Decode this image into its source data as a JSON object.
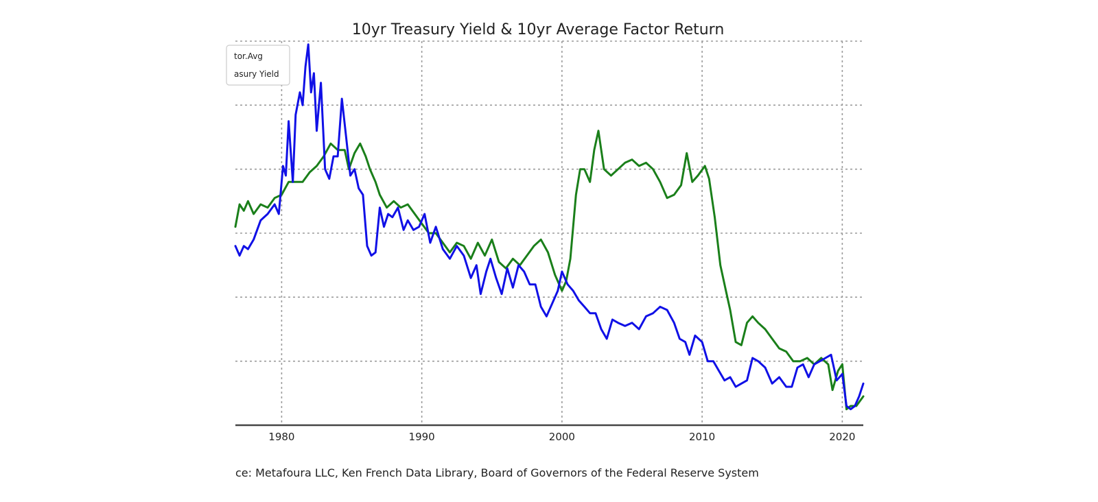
{
  "chart_data": {
    "type": "line",
    "title": "10yr Treasury Yield & 10yr Average Factor Return",
    "xlabel": "",
    "ylabel": "",
    "source": "ce: Metafoura LLC, Ken French Data Library, Board of Governors of the Federal Reserve System",
    "xlim": [
      1976.7,
      2021.5
    ],
    "ylim": [
      0,
      6
    ],
    "x_ticks": [
      1980,
      1990,
      2000,
      2010,
      2020
    ],
    "x_tick_labels": [
      "1980",
      "1990",
      "2000",
      "2010",
      "2020"
    ],
    "grid": true,
    "legend": {
      "placement": "top-left",
      "entries": [
        "tor.Avg",
        "asury Yield"
      ]
    },
    "series": [
      {
        "name": "tor.Avg",
        "color": "#1a7f1a",
        "x": [
          1976.7,
          1977.0,
          1977.3,
          1977.6,
          1978.0,
          1978.5,
          1979.0,
          1979.5,
          1980.0,
          1980.5,
          1981.0,
          1981.5,
          1982.0,
          1982.5,
          1983.0,
          1983.5,
          1984.0,
          1984.5,
          1984.8,
          1985.2,
          1985.6,
          1986.0,
          1986.3,
          1986.7,
          1987.0,
          1987.5,
          1988.0,
          1988.5,
          1989.0,
          1989.5,
          1990.0,
          1990.5,
          1991.0,
          1991.5,
          1992.0,
          1992.5,
          1993.0,
          1993.5,
          1994.0,
          1994.5,
          1995.0,
          1995.5,
          1996.0,
          1996.5,
          1997.0,
          1997.5,
          1998.0,
          1998.5,
          1999.0,
          1999.5,
          2000.0,
          2000.3,
          2000.6,
          2001.0,
          2001.3,
          2001.6,
          2002.0,
          2002.3,
          2002.6,
          2003.0,
          2003.5,
          2004.0,
          2004.5,
          2005.0,
          2005.5,
          2006.0,
          2006.5,
          2007.0,
          2007.5,
          2008.0,
          2008.5,
          2008.9,
          2009.3,
          2009.7,
          2010.2,
          2010.5,
          2010.9,
          2011.3,
          2011.7,
          2012.0,
          2012.4,
          2012.8,
          2013.2,
          2013.6,
          2014.0,
          2014.5,
          2015.0,
          2015.5,
          2016.0,
          2016.5,
          2017.0,
          2017.5,
          2018.0,
          2018.5,
          2019.0,
          2019.3,
          2019.7,
          2020.0,
          2020.3,
          2020.6,
          2021.0,
          2021.5
        ],
        "values": [
          3.1,
          3.45,
          3.35,
          3.5,
          3.3,
          3.45,
          3.4,
          3.55,
          3.6,
          3.8,
          3.8,
          3.8,
          3.95,
          4.05,
          4.2,
          4.4,
          4.3,
          4.3,
          4.0,
          4.25,
          4.4,
          4.2,
          4.0,
          3.8,
          3.6,
          3.4,
          3.5,
          3.4,
          3.45,
          3.3,
          3.15,
          3.0,
          3.0,
          2.85,
          2.7,
          2.85,
          2.8,
          2.6,
          2.85,
          2.65,
          2.9,
          2.55,
          2.45,
          2.6,
          2.5,
          2.65,
          2.8,
          2.9,
          2.7,
          2.35,
          2.1,
          2.25,
          2.6,
          3.6,
          4.0,
          4.0,
          3.8,
          4.3,
          4.6,
          4.0,
          3.9,
          4.0,
          4.1,
          4.15,
          4.05,
          4.1,
          4.0,
          3.8,
          3.55,
          3.6,
          3.75,
          4.25,
          3.8,
          3.9,
          4.05,
          3.85,
          3.25,
          2.5,
          2.1,
          1.8,
          1.3,
          1.25,
          1.6,
          1.7,
          1.6,
          1.5,
          1.35,
          1.2,
          1.15,
          1.0,
          1.0,
          1.05,
          0.95,
          1.05,
          0.95,
          0.55,
          0.85,
          0.95,
          0.25,
          0.3,
          0.3,
          0.45
        ]
      },
      {
        "name": "asury Yield",
        "color": "#1010e6",
        "x": [
          1976.7,
          1977.0,
          1977.3,
          1977.6,
          1978.0,
          1978.5,
          1979.0,
          1979.5,
          1979.8,
          1980.1,
          1980.3,
          1980.5,
          1980.8,
          1981.0,
          1981.3,
          1981.5,
          1981.7,
          1981.9,
          1982.1,
          1982.3,
          1982.5,
          1982.8,
          1983.1,
          1983.4,
          1983.7,
          1984.0,
          1984.3,
          1984.6,
          1984.9,
          1985.2,
          1985.5,
          1985.8,
          1986.1,
          1986.4,
          1986.7,
          1987.0,
          1987.3,
          1987.6,
          1987.9,
          1988.3,
          1988.7,
          1989.0,
          1989.4,
          1989.8,
          1990.2,
          1990.6,
          1991.0,
          1991.5,
          1992.0,
          1992.5,
          1993.0,
          1993.5,
          1993.9,
          1994.2,
          1994.6,
          1994.9,
          1995.3,
          1995.7,
          1996.1,
          1996.5,
          1996.9,
          1997.3,
          1997.7,
          1998.1,
          1998.5,
          1998.9,
          1999.3,
          1999.7,
          2000.0,
          2000.4,
          2000.8,
          2001.2,
          2001.6,
          2002.0,
          2002.4,
          2002.8,
          2003.2,
          2003.6,
          2004.0,
          2004.5,
          2005.0,
          2005.5,
          2006.0,
          2006.5,
          2007.0,
          2007.5,
          2008.0,
          2008.4,
          2008.8,
          2009.1,
          2009.5,
          2010.0,
          2010.4,
          2010.8,
          2011.2,
          2011.6,
          2012.0,
          2012.4,
          2012.8,
          2013.2,
          2013.6,
          2014.0,
          2014.5,
          2015.0,
          2015.5,
          2016.0,
          2016.4,
          2016.8,
          2017.2,
          2017.6,
          2018.0,
          2018.4,
          2018.8,
          2019.2,
          2019.6,
          2020.0,
          2020.3,
          2020.6,
          2020.9,
          2021.2,
          2021.5
        ],
        "values": [
          2.8,
          2.65,
          2.8,
          2.75,
          2.9,
          3.2,
          3.3,
          3.45,
          3.3,
          4.05,
          3.9,
          4.75,
          3.8,
          4.85,
          5.2,
          5.0,
          5.6,
          5.95,
          5.2,
          5.5,
          4.6,
          5.35,
          4.0,
          3.85,
          4.2,
          4.2,
          5.1,
          4.5,
          3.9,
          4.0,
          3.7,
          3.6,
          2.8,
          2.65,
          2.7,
          3.4,
          3.1,
          3.3,
          3.25,
          3.4,
          3.05,
          3.2,
          3.05,
          3.1,
          3.3,
          2.85,
          3.1,
          2.75,
          2.6,
          2.8,
          2.65,
          2.3,
          2.5,
          2.05,
          2.4,
          2.6,
          2.3,
          2.05,
          2.45,
          2.15,
          2.5,
          2.4,
          2.2,
          2.2,
          1.85,
          1.7,
          1.9,
          2.1,
          2.4,
          2.2,
          2.1,
          1.95,
          1.85,
          1.75,
          1.75,
          1.5,
          1.35,
          1.65,
          1.6,
          1.55,
          1.6,
          1.5,
          1.7,
          1.75,
          1.85,
          1.8,
          1.6,
          1.35,
          1.3,
          1.1,
          1.4,
          1.3,
          1.0,
          1.0,
          0.85,
          0.7,
          0.75,
          0.6,
          0.65,
          0.7,
          1.05,
          1.0,
          0.9,
          0.65,
          0.75,
          0.6,
          0.6,
          0.9,
          0.95,
          0.75,
          0.95,
          1.0,
          1.05,
          1.1,
          0.7,
          0.8,
          0.3,
          0.25,
          0.3,
          0.45,
          0.65
        ]
      }
    ]
  }
}
